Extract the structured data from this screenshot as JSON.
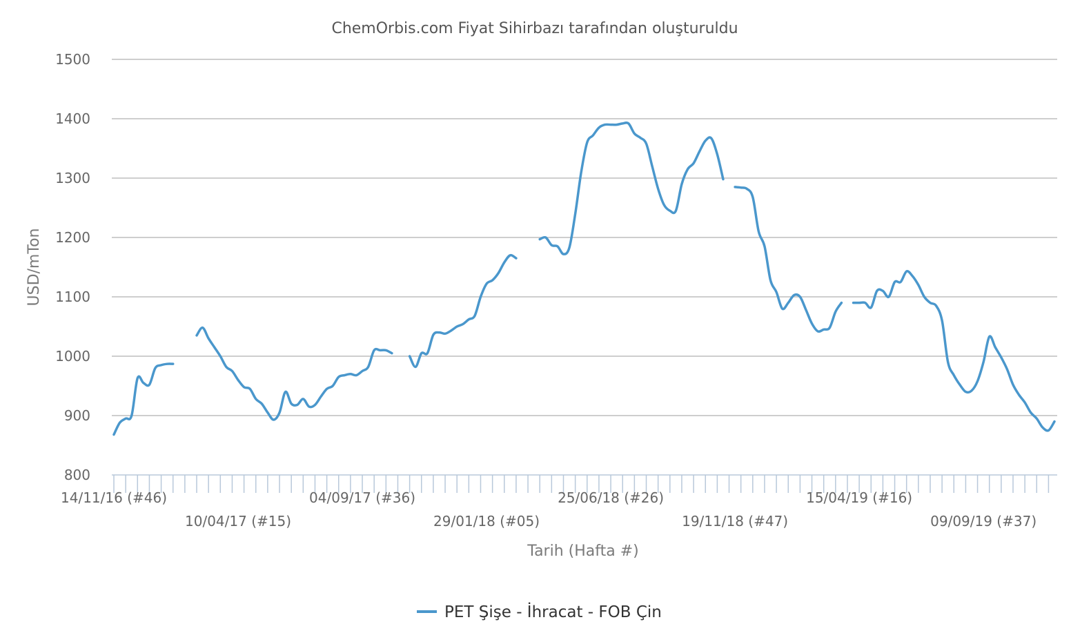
{
  "chart_data": {
    "type": "line",
    "title": "ChemOrbis.com Fiyat Sihirbazı tarafından oluşturuldu",
    "xlabel": "Tarih (Hafta #)",
    "ylabel": "USD/mTon",
    "ylim": [
      800,
      1500
    ],
    "yticks": [
      800,
      900,
      1000,
      1100,
      1200,
      1300,
      1400,
      1500
    ],
    "grid": true,
    "legend_position": "bottom-center",
    "x_tick_labels_upper": [
      "14/11/16 (#46)",
      "04/09/17 (#36)",
      "25/06/18 (#26)",
      "15/04/19 (#16)"
    ],
    "x_tick_labels_lower": [
      "10/04/17 (#15)",
      "29/01/18 (#05)",
      "19/11/18 (#47)",
      "09/09/19 (#37)"
    ],
    "series": [
      {
        "name": "PET Şişe - İhracat - FOB Çin",
        "color": "#4a97cc",
        "x_start": "2016-11-14",
        "x_step_weeks": 1,
        "values": [
          868,
          888,
          895,
          900,
          963,
          955,
          952,
          980,
          985,
          987,
          987,
          null,
          null,
          null,
          1035,
          1048,
          1030,
          1015,
          1000,
          982,
          975,
          960,
          948,
          945,
          928,
          920,
          905,
          893,
          905,
          940,
          920,
          918,
          928,
          915,
          918,
          932,
          945,
          950,
          965,
          968,
          970,
          968,
          975,
          982,
          1010,
          1010,
          1010,
          1005,
          null,
          null,
          1000,
          982,
          1005,
          1005,
          1036,
          1040,
          1038,
          1043,
          1050,
          1054,
          1062,
          1068,
          1100,
          1122,
          1128,
          1140,
          1158,
          1170,
          1165,
          null,
          null,
          null,
          1197,
          1200,
          1187,
          1185,
          1172,
          1183,
          1240,
          1310,
          1360,
          1372,
          1385,
          1390,
          1390,
          1390,
          1392,
          1392,
          1375,
          1368,
          1358,
          1320,
          1282,
          1255,
          1245,
          1245,
          1290,
          1315,
          1325,
          1345,
          1363,
          1367,
          1340,
          1298,
          null,
          1285,
          1284,
          1282,
          1268,
          1210,
          1185,
          1128,
          1108,
          1080,
          1090,
          1103,
          1100,
          1078,
          1055,
          1042,
          1045,
          1048,
          1075,
          1090,
          null,
          1090,
          1090,
          1090,
          1082,
          1110,
          1110,
          1100,
          1125,
          1125,
          1143,
          1135,
          1120,
          1100,
          1090,
          1085,
          1060,
          990,
          968,
          952,
          940,
          942,
          958,
          990,
          1033,
          1015,
          998,
          978,
          952,
          935,
          922,
          905,
          895,
          880,
          875,
          890
        ]
      }
    ]
  }
}
